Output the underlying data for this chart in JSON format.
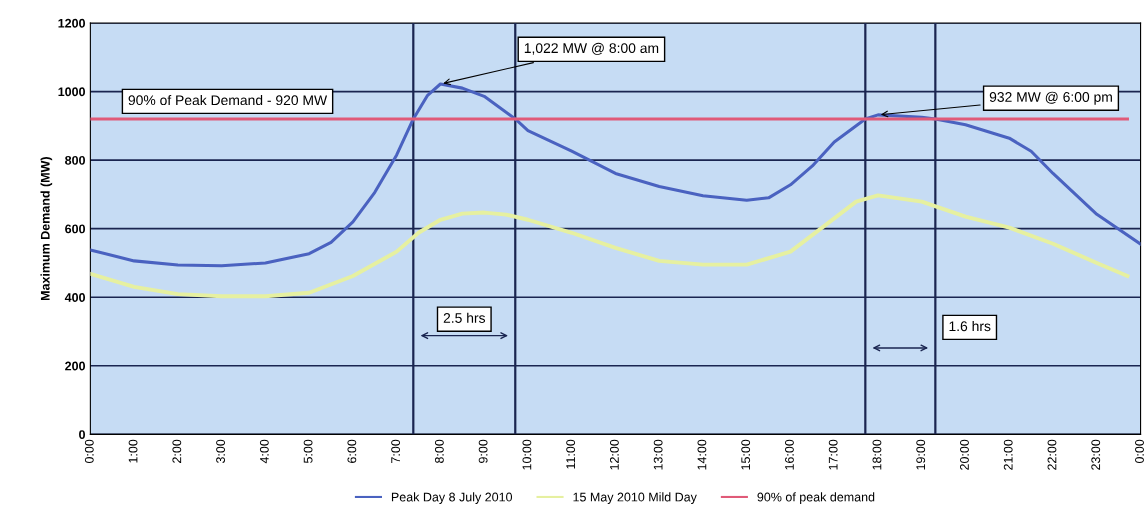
{
  "chart_data": {
    "type": "line",
    "ylabel": "Maximum Demand (MW)",
    "xlim": [
      0,
      24
    ],
    "ylim": [
      0,
      1200
    ],
    "xticks": [
      {
        "value": 0,
        "label": "0:00"
      },
      {
        "value": 1,
        "label": "1:00"
      },
      {
        "value": 2,
        "label": "2:00"
      },
      {
        "value": 3,
        "label": "3:00"
      },
      {
        "value": 4,
        "label": "4:00"
      },
      {
        "value": 5,
        "label": "5:00"
      },
      {
        "value": 6,
        "label": "6:00"
      },
      {
        "value": 7,
        "label": "7:00"
      },
      {
        "value": 8,
        "label": "8:00"
      },
      {
        "value": 9,
        "label": "9:00"
      },
      {
        "value": 10,
        "label": "10:00"
      },
      {
        "value": 11,
        "label": "11:00"
      },
      {
        "value": 12,
        "label": "12:00"
      },
      {
        "value": 13,
        "label": "13:00"
      },
      {
        "value": 14,
        "label": "14:00"
      },
      {
        "value": 15,
        "label": "15:00"
      },
      {
        "value": 16,
        "label": "16:00"
      },
      {
        "value": 17,
        "label": "17:00"
      },
      {
        "value": 18,
        "label": "18:00"
      },
      {
        "value": 19,
        "label": "19:00"
      },
      {
        "value": 20,
        "label": "20:00"
      },
      {
        "value": 21,
        "label": "21:00"
      },
      {
        "value": 22,
        "label": "22:00"
      },
      {
        "value": 23,
        "label": "23:00"
      },
      {
        "value": 24,
        "label": "0:00"
      }
    ],
    "yticks": [
      0,
      200,
      400,
      600,
      800,
      1000,
      1200
    ],
    "grid": "y",
    "legend": "bottom",
    "marker": "none",
    "line_style": "solid",
    "series": [
      {
        "name": "Peak Day 8 July 2010",
        "color": "#4a62c0",
        "x": [
          0,
          1,
          2,
          3,
          4,
          5,
          5.5,
          6,
          6.5,
          7,
          7.38,
          7.7,
          8,
          8.5,
          9,
          9.71,
          10,
          11,
          12,
          13,
          14,
          15,
          15.5,
          16,
          16.5,
          17,
          17.71,
          18,
          19,
          19.31,
          20,
          21,
          21.5,
          22,
          23,
          24
        ],
        "values": [
          538,
          506,
          494,
          492,
          500,
          527,
          560,
          620,
          706,
          815,
          920,
          988,
          1022,
          1010,
          986,
          920,
          886,
          826,
          761,
          723,
          696,
          683,
          690,
          728,
          783,
          853,
          920,
          932,
          925,
          920,
          903,
          864,
          826,
          761,
          642,
          555
        ]
      },
      {
        "name": "15 May 2010 Mild Day",
        "color": "#e6f0a0",
        "x": [
          0,
          1,
          2,
          3,
          4,
          5,
          6,
          7,
          7.5,
          8,
          8.5,
          9,
          9.5,
          10,
          11,
          12,
          13,
          14,
          15,
          16,
          17,
          17.5,
          18,
          19,
          20,
          21,
          22,
          23,
          23.7
        ],
        "values": [
          468,
          430,
          409,
          403,
          403,
          413,
          462,
          533,
          588,
          626,
          644,
          647,
          641,
          626,
          588,
          544,
          506,
          495,
          495,
          533,
          630,
          679,
          697,
          679,
          635,
          603,
          556,
          500,
          462
        ]
      },
      {
        "name": "90% of peak demand",
        "color": "#e05a78",
        "x": [
          0,
          23.7
        ],
        "values": [
          920,
          920
        ]
      }
    ],
    "ref_lines": [
      {
        "axis": "x",
        "value": 7.38,
        "color": "#1a2550"
      },
      {
        "axis": "x",
        "value": 9.71,
        "color": "#1a2550"
      },
      {
        "axis": "x",
        "value": 17.71,
        "color": "#1a2550"
      },
      {
        "axis": "x",
        "value": 19.31,
        "color": "#1a2550"
      }
    ],
    "annotations": [
      {
        "text": "1,022 MW @ 8:00 am",
        "x": 8,
        "y": 1022
      },
      {
        "text": "932 MW @ 6:00 pm",
        "x": 18,
        "y": 932
      },
      {
        "text": "90% of Peak Demand - 920 MW",
        "x": 0.7,
        "y": 920
      },
      "2.5 hrs",
      "1.6 hrs"
    ]
  }
}
